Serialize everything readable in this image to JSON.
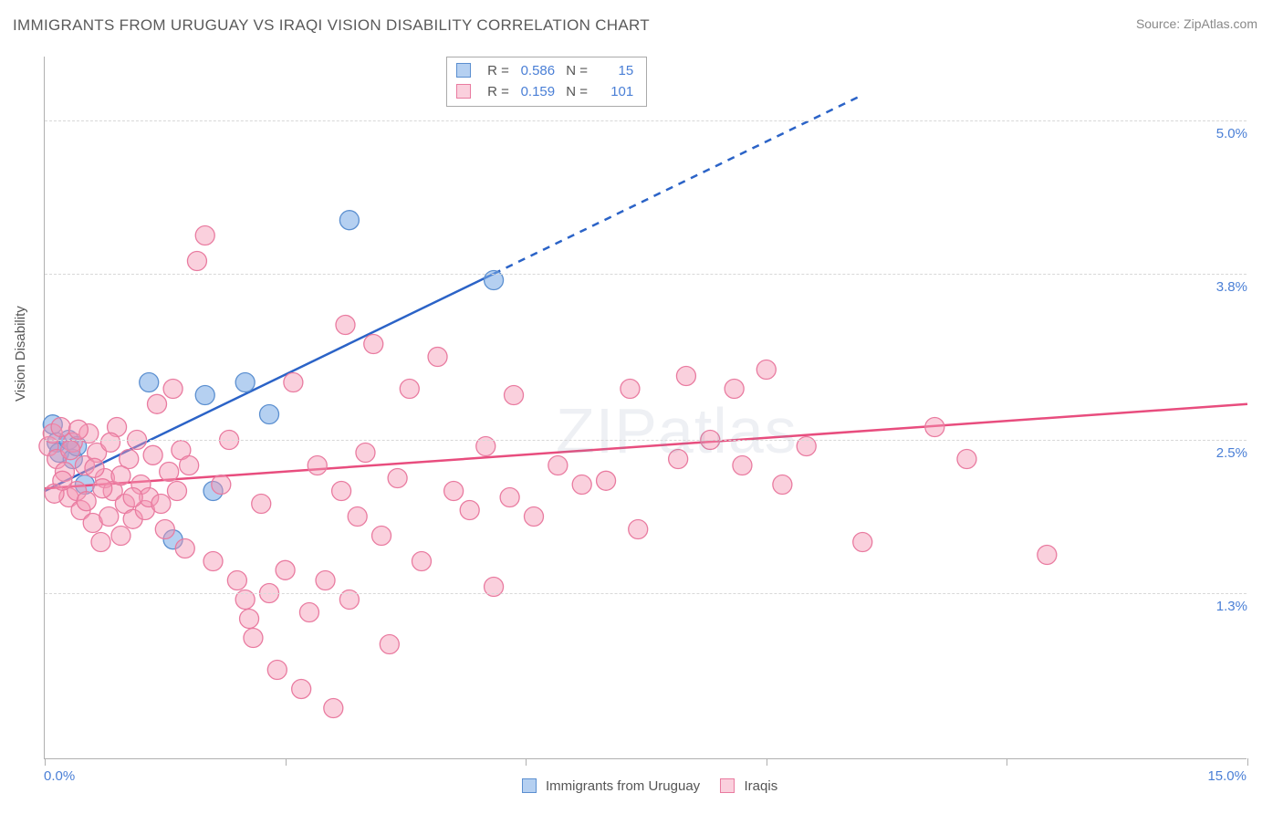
{
  "title": "IMMIGRANTS FROM URUGUAY VS IRAQI VISION DISABILITY CORRELATION CHART",
  "source_label": "Source:",
  "source_name": "ZipAtlas.com",
  "y_axis_label": "Vision Disability",
  "watermark": "ZIPatlas",
  "chart": {
    "type": "scatter",
    "background_color": "#ffffff",
    "grid_color": "#d8d8d8",
    "axis_color": "#b0b0b0",
    "xlim": [
      0.0,
      15.0
    ],
    "ylim": [
      0.0,
      5.5
    ],
    "x_origin_label": "0.0%",
    "x_end_label": "15.0%",
    "y_ticks": [
      {
        "value": 1.3,
        "label": "1.3%"
      },
      {
        "value": 2.5,
        "label": "2.5%"
      },
      {
        "value": 3.8,
        "label": "3.8%"
      },
      {
        "value": 5.0,
        "label": "5.0%"
      }
    ],
    "x_tick_positions": [
      0,
      3,
      6,
      9,
      12,
      15
    ],
    "series": [
      {
        "name": "Immigrants from Uruguay",
        "marker_color_fill": "rgba(120,170,230,0.55)",
        "marker_color_stroke": "#5b8fd0",
        "line_color": "#2b63c7",
        "line_width": 2.5,
        "line_dash_after_x": 5.6,
        "R": "0.586",
        "N": "15",
        "trend": {
          "x1": 0.0,
          "y1": 2.1,
          "x2": 5.6,
          "y2": 3.8,
          "x2_dash": 10.2,
          "y2_dash": 5.2
        },
        "points": [
          {
            "x": 0.1,
            "y": 2.62
          },
          {
            "x": 0.15,
            "y": 2.48
          },
          {
            "x": 0.18,
            "y": 2.4
          },
          {
            "x": 0.3,
            "y": 2.5
          },
          {
            "x": 0.35,
            "y": 2.35
          },
          {
            "x": 0.4,
            "y": 2.45
          },
          {
            "x": 0.5,
            "y": 2.15
          },
          {
            "x": 1.3,
            "y": 2.95
          },
          {
            "x": 1.6,
            "y": 1.72
          },
          {
            "x": 2.0,
            "y": 2.85
          },
          {
            "x": 2.5,
            "y": 2.95
          },
          {
            "x": 2.8,
            "y": 2.7
          },
          {
            "x": 2.1,
            "y": 2.1
          },
          {
            "x": 3.8,
            "y": 4.22
          },
          {
            "x": 5.6,
            "y": 3.75
          }
        ]
      },
      {
        "name": "Iraqis",
        "marker_color_fill": "rgba(245,150,180,0.45)",
        "marker_color_stroke": "#e97ba0",
        "line_color": "#e84d7e",
        "line_width": 2.5,
        "R": "0.159",
        "N": "101",
        "trend": {
          "x1": 0.0,
          "y1": 2.12,
          "x2": 15.0,
          "y2": 2.78
        },
        "points": [
          {
            "x": 0.05,
            "y": 2.45
          },
          {
            "x": 0.1,
            "y": 2.55
          },
          {
            "x": 0.15,
            "y": 2.35
          },
          {
            "x": 0.2,
            "y": 2.6
          },
          {
            "x": 0.25,
            "y": 2.25
          },
          {
            "x": 0.3,
            "y": 2.05
          },
          {
            "x": 0.35,
            "y": 2.48
          },
          {
            "x": 0.4,
            "y": 2.1
          },
          {
            "x": 0.45,
            "y": 1.95
          },
          {
            "x": 0.5,
            "y": 2.3
          },
          {
            "x": 0.55,
            "y": 2.55
          },
          {
            "x": 0.6,
            "y": 1.85
          },
          {
            "x": 0.65,
            "y": 2.4
          },
          {
            "x": 0.7,
            "y": 1.7
          },
          {
            "x": 0.75,
            "y": 2.2
          },
          {
            "x": 0.8,
            "y": 1.9
          },
          {
            "x": 0.85,
            "y": 2.1
          },
          {
            "x": 0.9,
            "y": 2.6
          },
          {
            "x": 0.95,
            "y": 1.75
          },
          {
            "x": 1.0,
            "y": 2.0
          },
          {
            "x": 1.05,
            "y": 2.35
          },
          {
            "x": 1.1,
            "y": 1.88
          },
          {
            "x": 1.15,
            "y": 2.5
          },
          {
            "x": 1.2,
            "y": 2.15
          },
          {
            "x": 1.25,
            "y": 1.95
          },
          {
            "x": 1.3,
            "y": 2.05
          },
          {
            "x": 1.35,
            "y": 2.38
          },
          {
            "x": 1.4,
            "y": 2.78
          },
          {
            "x": 1.45,
            "y": 2.0
          },
          {
            "x": 1.5,
            "y": 1.8
          },
          {
            "x": 1.55,
            "y": 2.25
          },
          {
            "x": 1.6,
            "y": 2.9
          },
          {
            "x": 1.65,
            "y": 2.1
          },
          {
            "x": 1.7,
            "y": 2.42
          },
          {
            "x": 1.75,
            "y": 1.65
          },
          {
            "x": 1.8,
            "y": 2.3
          },
          {
            "x": 1.9,
            "y": 3.9
          },
          {
            "x": 2.0,
            "y": 4.1
          },
          {
            "x": 2.1,
            "y": 1.55
          },
          {
            "x": 2.2,
            "y": 2.15
          },
          {
            "x": 2.3,
            "y": 2.5
          },
          {
            "x": 2.4,
            "y": 1.4
          },
          {
            "x": 2.5,
            "y": 1.25
          },
          {
            "x": 2.55,
            "y": 1.1
          },
          {
            "x": 2.6,
            "y": 0.95
          },
          {
            "x": 2.7,
            "y": 2.0
          },
          {
            "x": 2.8,
            "y": 1.3
          },
          {
            "x": 2.9,
            "y": 0.7
          },
          {
            "x": 3.0,
            "y": 1.48
          },
          {
            "x": 3.1,
            "y": 2.95
          },
          {
            "x": 3.2,
            "y": 0.55
          },
          {
            "x": 3.3,
            "y": 1.15
          },
          {
            "x": 3.4,
            "y": 2.3
          },
          {
            "x": 3.5,
            "y": 1.4
          },
          {
            "x": 3.6,
            "y": 0.4
          },
          {
            "x": 3.7,
            "y": 2.1
          },
          {
            "x": 3.75,
            "y": 3.4
          },
          {
            "x": 3.8,
            "y": 1.25
          },
          {
            "x": 3.9,
            "y": 1.9
          },
          {
            "x": 4.0,
            "y": 2.4
          },
          {
            "x": 4.1,
            "y": 3.25
          },
          {
            "x": 4.2,
            "y": 1.75
          },
          {
            "x": 4.3,
            "y": 0.9
          },
          {
            "x": 4.4,
            "y": 2.2
          },
          {
            "x": 4.55,
            "y": 2.9
          },
          {
            "x": 4.7,
            "y": 1.55
          },
          {
            "x": 4.9,
            "y": 3.15
          },
          {
            "x": 5.1,
            "y": 2.1
          },
          {
            "x": 5.3,
            "y": 1.95
          },
          {
            "x": 5.5,
            "y": 2.45
          },
          {
            "x": 5.6,
            "y": 1.35
          },
          {
            "x": 5.8,
            "y": 2.05
          },
          {
            "x": 5.85,
            "y": 2.85
          },
          {
            "x": 6.1,
            "y": 1.9
          },
          {
            "x": 6.4,
            "y": 2.3
          },
          {
            "x": 6.7,
            "y": 2.15
          },
          {
            "x": 7.0,
            "y": 2.18
          },
          {
            "x": 7.3,
            "y": 2.9
          },
          {
            "x": 7.4,
            "y": 1.8
          },
          {
            "x": 7.9,
            "y": 2.35
          },
          {
            "x": 8.0,
            "y": 3.0
          },
          {
            "x": 8.3,
            "y": 2.5
          },
          {
            "x": 8.6,
            "y": 2.9
          },
          {
            "x": 8.7,
            "y": 2.3
          },
          {
            "x": 9.0,
            "y": 3.05
          },
          {
            "x": 9.2,
            "y": 2.15
          },
          {
            "x": 9.5,
            "y": 2.45
          },
          {
            "x": 10.2,
            "y": 1.7
          },
          {
            "x": 11.1,
            "y": 2.6
          },
          {
            "x": 11.5,
            "y": 2.35
          },
          {
            "x": 12.5,
            "y": 1.6
          },
          {
            "x": 0.12,
            "y": 2.08
          },
          {
            "x": 0.22,
            "y": 2.18
          },
          {
            "x": 0.32,
            "y": 2.42
          },
          {
            "x": 0.42,
            "y": 2.58
          },
          {
            "x": 0.52,
            "y": 2.02
          },
          {
            "x": 0.62,
            "y": 2.28
          },
          {
            "x": 0.72,
            "y": 2.12
          },
          {
            "x": 0.82,
            "y": 2.48
          },
          {
            "x": 0.95,
            "y": 2.22
          },
          {
            "x": 1.1,
            "y": 2.05
          }
        ]
      }
    ],
    "marker_radius": 10.5
  }
}
